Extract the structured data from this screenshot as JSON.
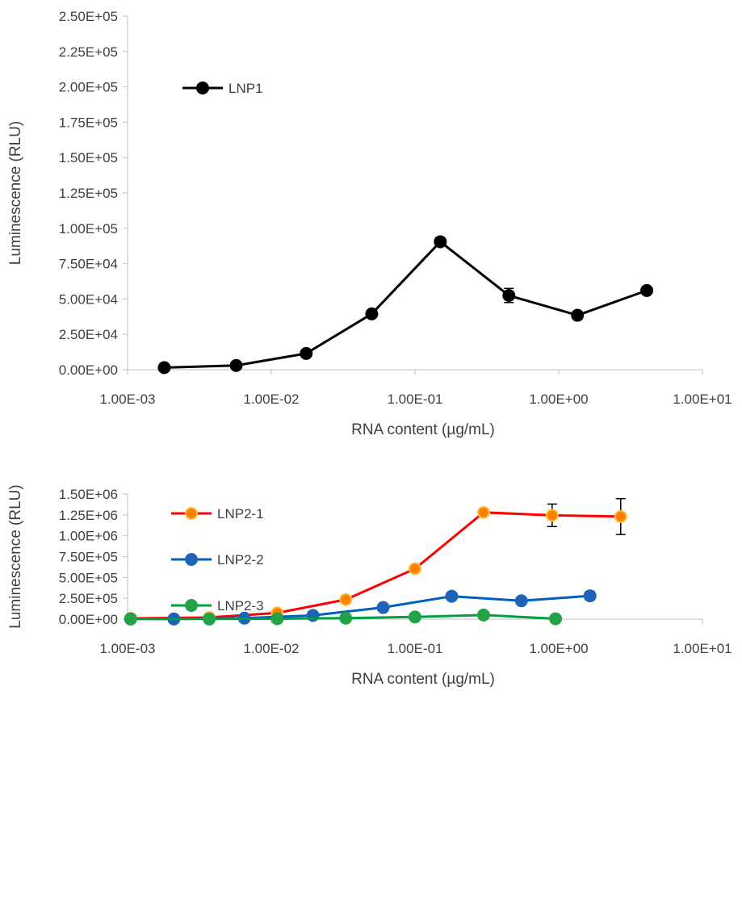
{
  "chart_data": [
    {
      "type": "line",
      "xlabel": "RNA content (µg/mL)",
      "ylabel": "Luminescence (RLU)",
      "x_scale": "log",
      "xlim": [
        0.001,
        10
      ],
      "ylim": [
        0,
        250000
      ],
      "x_ticks": [
        0.001,
        0.01,
        0.1,
        1,
        10
      ],
      "x_tick_labels": [
        "1.00E-03",
        "1.00E-02",
        "1.00E-01",
        "1.00E+00",
        "1.00E+01"
      ],
      "y_ticks": [
        0,
        25000,
        50000,
        75000,
        100000,
        125000,
        150000,
        175000,
        200000,
        225000,
        250000
      ],
      "y_tick_labels": [
        "0.00E+00",
        "2.50E+04",
        "5.00E+04",
        "7.50E+04",
        "1.00E+05",
        "1.25E+05",
        "1.50E+05",
        "1.75E+05",
        "2.00E+05",
        "2.25E+05",
        "2.50E+05"
      ],
      "grid": false,
      "legend": "top-left",
      "series": [
        {
          "name": "LNP1",
          "color": "#000000",
          "marker_fill": "#000000",
          "marker_stroke": "#000000",
          "x": [
            0.0018,
            0.0057,
            0.0175,
            0.05,
            0.15,
            0.45,
            1.35,
            4.1
          ],
          "y": [
            1500,
            3000,
            11500,
            39500,
            90500,
            52500,
            38500,
            56000
          ],
          "error": [
            0,
            0,
            0,
            1000,
            3000,
            5000,
            1000,
            1500
          ]
        }
      ]
    },
    {
      "type": "line",
      "xlabel": "RNA content (µg/mL)",
      "ylabel": "Luminescence (RLU)",
      "x_scale": "log",
      "xlim": [
        0.001,
        10
      ],
      "ylim": [
        0,
        1500000
      ],
      "x_ticks": [
        0.001,
        0.01,
        0.1,
        1,
        10
      ],
      "x_tick_labels": [
        "1.00E-03",
        "1.00E-02",
        "1.00E-01",
        "1.00E+00",
        "1.00E+01"
      ],
      "y_ticks": [
        0,
        250000,
        500000,
        750000,
        1000000,
        1250000,
        1500000
      ],
      "y_tick_labels": [
        "0.00E+00",
        "2.50E+05",
        "5.00E+05",
        "7.50E+05",
        "1.00E+06",
        "1.25E+06",
        "1.50E+06"
      ],
      "grid": false,
      "legend": "top-left",
      "series": [
        {
          "name": "LNP2-1",
          "color": "#ff0000",
          "marker_fill": "#ff7f00",
          "marker_stroke": "#f5c242",
          "x": [
            0.00105,
            0.0037,
            0.011,
            0.033,
            0.1,
            0.3,
            0.9,
            2.7
          ],
          "y": [
            10000,
            20000,
            75000,
            235000,
            605000,
            1280000,
            1245000,
            1230000
          ],
          "error": [
            0,
            0,
            0,
            0,
            45000,
            0,
            135000,
            215000
          ]
        },
        {
          "name": "LNP2-2",
          "color": "#0060c0",
          "marker_fill": "#1f63b8",
          "marker_stroke": "#1f63b8",
          "x": [
            0.00105,
            0.0021,
            0.0065,
            0.0195,
            0.06,
            0.18,
            0.55,
            1.65
          ],
          "y": [
            4000,
            3000,
            12000,
            45000,
            140000,
            275000,
            220000,
            280000
          ],
          "error": [
            0,
            0,
            0,
            0,
            0,
            25000,
            0,
            50000
          ]
        },
        {
          "name": "LNP2-3",
          "color": "#00a040",
          "marker_fill": "#22a34a",
          "marker_stroke": "#22a34a",
          "x": [
            0.00105,
            0.0037,
            0.011,
            0.033,
            0.1,
            0.3,
            0.95
          ],
          "y": [
            2000,
            2000,
            5000,
            12000,
            27000,
            50000,
            5000
          ],
          "error": [
            0,
            0,
            0,
            0,
            0,
            0,
            0
          ]
        }
      ]
    }
  ]
}
